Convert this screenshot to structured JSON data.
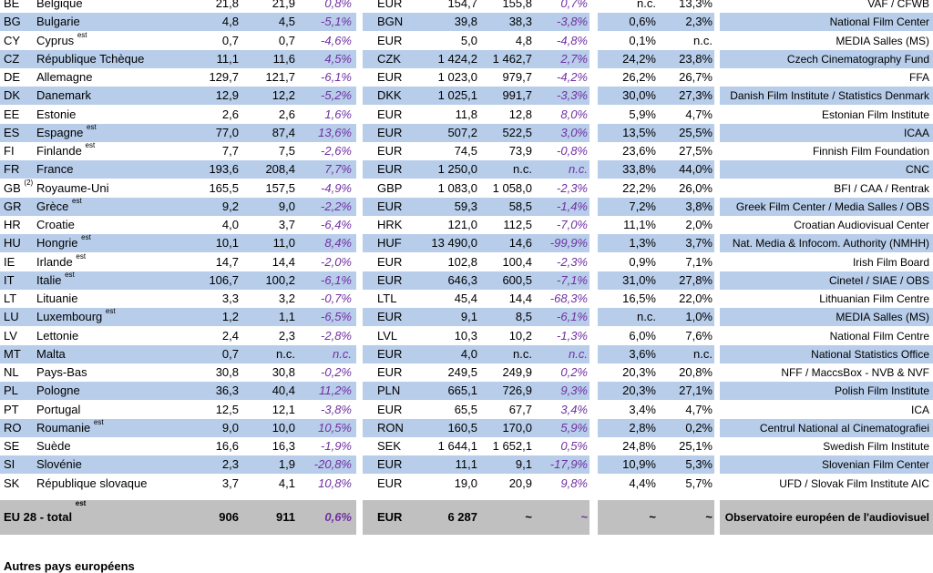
{
  "rows": [
    {
      "code": "BE",
      "name": "Belgique",
      "est": "est",
      "v1": "21,8",
      "v2": "21,9",
      "pct": "0,8%",
      "cur": "EUR",
      "m1": "154,7",
      "m2": "155,8",
      "mp": "0,7%",
      "s1": "n.c.",
      "s2": "13,3%",
      "src": "VAF / CFWB"
    },
    {
      "code": "BG",
      "name": "Bulgarie",
      "est": "",
      "v1": "4,8",
      "v2": "4,5",
      "pct": "-5,1%",
      "cur": "BGN",
      "m1": "39,8",
      "m2": "38,3",
      "mp": "-3,8%",
      "s1": "0,6%",
      "s2": "2,3%",
      "src": "National Film Center"
    },
    {
      "code": "CY",
      "name": "Cyprus",
      "est": "est",
      "v1": "0,7",
      "v2": "0,7",
      "pct": "-4,6%",
      "cur": "EUR",
      "m1": "5,0",
      "m2": "4,8",
      "mp": "-4,8%",
      "s1": "0,1%",
      "s2": "n.c.",
      "src": "MEDIA Salles (MS)"
    },
    {
      "code": "CZ",
      "name": "République Tchèque",
      "est": "",
      "v1": "11,1",
      "v2": "11,6",
      "pct": "4,5%",
      "cur": "CZK",
      "m1": "1 424,2",
      "m2": "1 462,7",
      "mp": "2,7%",
      "s1": "24,2%",
      "s2": "23,8%",
      "src": "Czech Cinematography Fund"
    },
    {
      "code": "DE",
      "name": "Allemagne",
      "est": "",
      "v1": "129,7",
      "v2": "121,7",
      "pct": "-6,1%",
      "cur": "EUR",
      "m1": "1 023,0",
      "m2": "979,7",
      "mp": "-4,2%",
      "s1": "26,2%",
      "s2": "26,7%",
      "src": "FFA"
    },
    {
      "code": "DK",
      "name": "Danemark",
      "est": "",
      "v1": "12,9",
      "v2": "12,2",
      "pct": "-5,2%",
      "cur": "DKK",
      "m1": "1 025,1",
      "m2": "991,7",
      "mp": "-3,3%",
      "s1": "30,0%",
      "s2": "27,3%",
      "src": "Danish Film Institute / Statistics Denmark"
    },
    {
      "code": "EE",
      "name": "Estonie",
      "est": "",
      "v1": "2,6",
      "v2": "2,6",
      "pct": "1,6%",
      "cur": "EUR",
      "m1": "11,8",
      "m2": "12,8",
      "mp": "8,0%",
      "s1": "5,9%",
      "s2": "4,7%",
      "src": "Estonian Film Institute"
    },
    {
      "code": "ES",
      "name": "Espagne",
      "est": "est",
      "v1": "77,0",
      "v2": "87,4",
      "pct": "13,6%",
      "cur": "EUR",
      "m1": "507,2",
      "m2": "522,5",
      "mp": "3,0%",
      "s1": "13,5%",
      "s2": "25,5%",
      "src": "ICAA"
    },
    {
      "code": "FI",
      "name": "Finlande",
      "est": "est",
      "v1": "7,7",
      "v2": "7,5",
      "pct": "-2,6%",
      "cur": "EUR",
      "m1": "74,5",
      "m2": "73,9",
      "mp": "-0,8%",
      "s1": "23,6%",
      "s2": "27,5%",
      "src": "Finnish Film Foundation"
    },
    {
      "code": "FR",
      "name": "France",
      "est": "",
      "v1": "193,6",
      "v2": "208,4",
      "pct": "7,7%",
      "cur": "EUR",
      "m1": "1 250,0",
      "m2": "n.c.",
      "mp": "n.c.",
      "s1": "33,8%",
      "s2": "44,0%",
      "src": "CNC"
    },
    {
      "code": "GB",
      "codeSup": "(2)",
      "name": "Royaume-Uni",
      "est": "",
      "v1": "165,5",
      "v2": "157,5",
      "pct": "-4,9%",
      "cur": "GBP",
      "m1": "1 083,0",
      "m2": "1 058,0",
      "mp": "-2,3%",
      "s1": "22,2%",
      "s2": "26,0%",
      "src": "BFI / CAA / Rentrak"
    },
    {
      "code": "GR",
      "name": "Grèce",
      "est": "est",
      "v1": "9,2",
      "v2": "9,0",
      "pct": "-2,2%",
      "cur": "EUR",
      "m1": "59,3",
      "m2": "58,5",
      "mp": "-1,4%",
      "s1": "7,2%",
      "s2": "3,8%",
      "src": "Greek Film Center / Media Salles / OBS"
    },
    {
      "code": "HR",
      "name": "Croatie",
      "est": "",
      "v1": "4,0",
      "v2": "3,7",
      "pct": "-6,4%",
      "cur": "HRK",
      "m1": "121,0",
      "m2": "112,5",
      "mp": "-7,0%",
      "s1": "11,1%",
      "s2": "2,0%",
      "src": "Croatian Audiovisual Center"
    },
    {
      "code": "HU",
      "name": "Hongrie",
      "est": "est",
      "v1": "10,1",
      "v2": "11,0",
      "pct": "8,4%",
      "cur": "HUF",
      "m1": "13 490,0",
      "m2": "14,6",
      "mp": "-99,9%",
      "s1": "1,3%",
      "s2": "3,7%",
      "src": "Nat. Media & Infocom. Authority (NMHH)"
    },
    {
      "code": "IE",
      "name": "Irlande",
      "est": "est",
      "v1": "14,7",
      "v2": "14,4",
      "pct": "-2,0%",
      "cur": "EUR",
      "m1": "102,8",
      "m2": "100,4",
      "mp": "-2,3%",
      "s1": "0,9%",
      "s2": "7,1%",
      "src": "Irish Film Board"
    },
    {
      "code": "IT",
      "name": "Italie",
      "est": "est",
      "v1": "106,7",
      "v2": "100,2",
      "pct": "-6,1%",
      "cur": "EUR",
      "m1": "646,3",
      "m2": "600,5",
      "mp": "-7,1%",
      "s1": "31,0%",
      "s2": "27,8%",
      "src": "Cinetel / SIAE / OBS"
    },
    {
      "code": "LT",
      "name": "Lituanie",
      "est": "",
      "v1": "3,3",
      "v2": "3,2",
      "pct": "-0,7%",
      "cur": "LTL",
      "m1": "45,4",
      "m2": "14,4",
      "mp": "-68,3%",
      "s1": "16,5%",
      "s2": "22,0%",
      "src": "Lithuanian Film Centre"
    },
    {
      "code": "LU",
      "name": "Luxembourg",
      "est": "est",
      "v1": "1,2",
      "v2": "1,1",
      "pct": "-6,5%",
      "cur": "EUR",
      "m1": "9,1",
      "m2": "8,5",
      "mp": "-6,1%",
      "s1": "n.c.",
      "s2": "1,0%",
      "src": "MEDIA Salles (MS)"
    },
    {
      "code": "LV",
      "name": "Lettonie",
      "est": "",
      "v1": "2,4",
      "v2": "2,3",
      "pct": "-2,8%",
      "cur": "LVL",
      "m1": "10,3",
      "m2": "10,2",
      "mp": "-1,3%",
      "s1": "6,0%",
      "s2": "7,6%",
      "src": "National Film Centre"
    },
    {
      "code": "MT",
      "name": "Malta",
      "est": "",
      "v1": "0,7",
      "v2": "n.c.",
      "pct": "n.c.",
      "cur": "EUR",
      "m1": "4,0",
      "m2": "n.c.",
      "mp": "n.c.",
      "s1": "3,6%",
      "s2": "n.c.",
      "src": "National Statistics Office"
    },
    {
      "code": "NL",
      "name": "Pays-Bas",
      "est": "",
      "v1": "30,8",
      "v2": "30,8",
      "pct": "-0,2%",
      "cur": "EUR",
      "m1": "249,5",
      "m2": "249,9",
      "mp": "0,2%",
      "s1": "20,3%",
      "s2": "20,8%",
      "src": "NFF / MaccsBox - NVB & NVF"
    },
    {
      "code": "PL",
      "name": "Pologne",
      "est": "",
      "v1": "36,3",
      "v2": "40,4",
      "pct": "11,2%",
      "cur": "PLN",
      "m1": "665,1",
      "m2": "726,9",
      "mp": "9,3%",
      "s1": "20,3%",
      "s2": "27,1%",
      "src": "Polish Film Institute"
    },
    {
      "code": "PT",
      "name": "Portugal",
      "est": "",
      "v1": "12,5",
      "v2": "12,1",
      "pct": "-3,8%",
      "cur": "EUR",
      "m1": "65,5",
      "m2": "67,7",
      "mp": "3,4%",
      "s1": "3,4%",
      "s2": "4,7%",
      "src": "ICA"
    },
    {
      "code": "RO",
      "name": "Roumanie",
      "est": "est",
      "v1": "9,0",
      "v2": "10,0",
      "pct": "10,5%",
      "cur": "RON",
      "m1": "160,5",
      "m2": "170,0",
      "mp": "5,9%",
      "s1": "2,8%",
      "s2": "0,2%",
      "src": "Centrul National al Cinematografiei"
    },
    {
      "code": "SE",
      "name": "Suède",
      "est": "",
      "v1": "16,6",
      "v2": "16,3",
      "pct": "-1,9%",
      "cur": "SEK",
      "m1": "1 644,1",
      "m2": "1 652,1",
      "mp": "0,5%",
      "s1": "24,8%",
      "s2": "25,1%",
      "src": "Swedish Film Institute"
    },
    {
      "code": "SI",
      "name": "Slovénie",
      "est": "",
      "v1": "2,3",
      "v2": "1,9",
      "pct": "-20,8%",
      "cur": "EUR",
      "m1": "11,1",
      "m2": "9,1",
      "mp": "-17,9%",
      "s1": "10,9%",
      "s2": "5,3%",
      "src": "Slovenian Film Center"
    },
    {
      "code": "SK",
      "name": "République slovaque",
      "est": "",
      "v1": "3,7",
      "v2": "4,1",
      "pct": "10,8%",
      "cur": "EUR",
      "m1": "19,0",
      "m2": "20,9",
      "mp": "9,8%",
      "s1": "4,4%",
      "s2": "5,7%",
      "src": "UFD / Slovak Film Institute AIC"
    }
  ],
  "total": {
    "label": "EU 28 - total",
    "est": "est",
    "v1": "906",
    "v2": "911",
    "pct": "0,6%",
    "cur": "EUR",
    "m1": "6 287",
    "m2": "~",
    "mp": "~",
    "s1": "~",
    "s2": "~",
    "src": "Observatoire européen de l'audiovisuel"
  },
  "section_title": "Autres pays européens"
}
